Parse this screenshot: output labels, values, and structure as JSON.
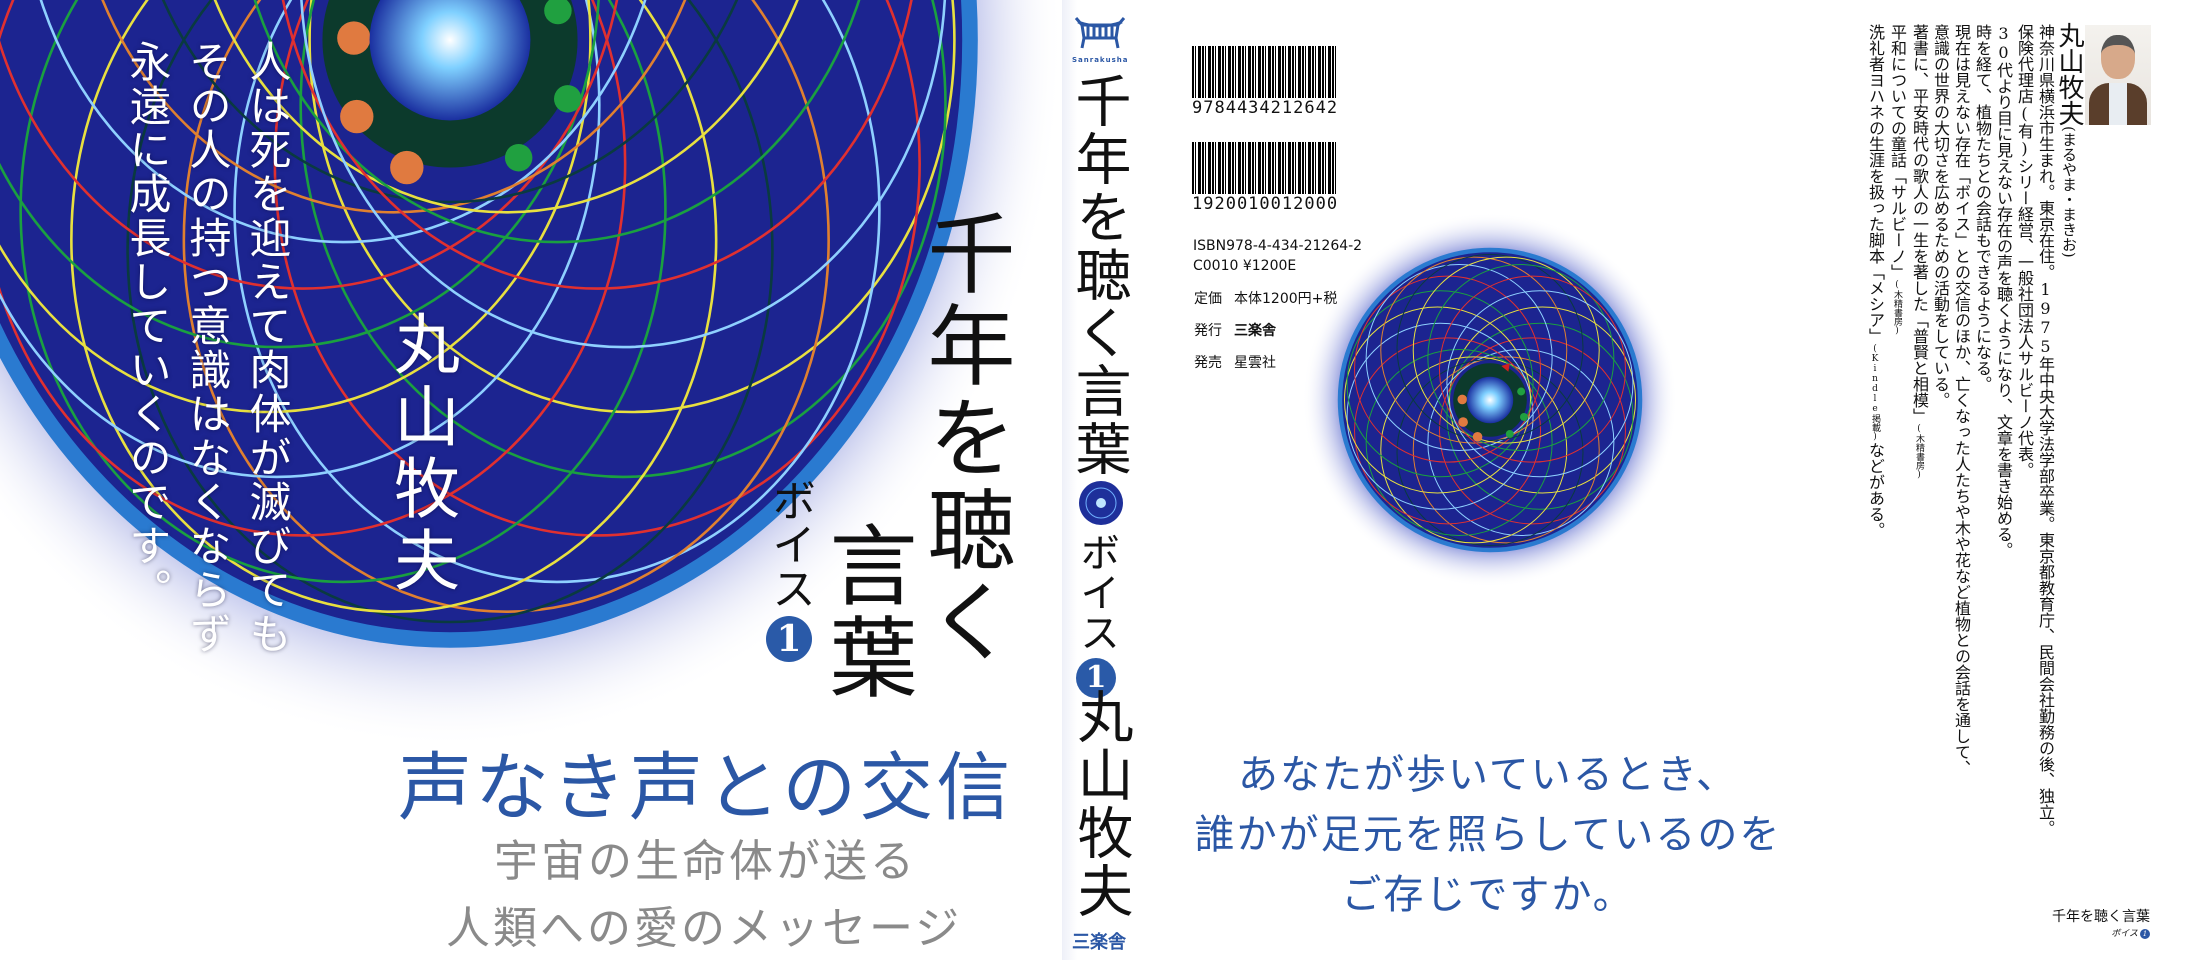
{
  "front": {
    "quote": [
      "人は死を迎えて肉体が滅びても",
      "その人の持つ意識はなくならず",
      "永遠に成長していくのです。"
    ],
    "author": "丸山牧夫",
    "title_line1": "千年を聴く",
    "title_line2": "言葉",
    "series": "ボイス",
    "volume": "1",
    "tagline": "声なき声との交信",
    "subtitle": [
      "宇宙の生命体が送る",
      "人類への愛のメッセージ"
    ]
  },
  "spine": {
    "logo_text": "Sanrakusha",
    "title": "千年を聴く言葉",
    "series": "ボイス",
    "volume": "1",
    "author": "丸山牧夫",
    "publisher": "三楽舎"
  },
  "back": {
    "barcode1": "9784434212642",
    "barcode2": "1920010012000",
    "isbn": "ISBN978-4-434-21264-2",
    "code": "C0010 ¥1200E",
    "price_label": "定価",
    "price": "本体1200円+税",
    "publisher_label": "発行",
    "publisher": "三楽舎",
    "distributor_label": "発売",
    "distributor": "星雲社",
    "tagline": [
      "あなたが歩いているとき、",
      "誰かが足元を照らしているのを",
      "ご存じですか。"
    ],
    "bio": {
      "name": "丸山牧夫",
      "reading": "(まるやま・まきお)",
      "lines": [
        {
          "text": "神奈川県横浜市生まれ。東京在住。1975年中央大学法学部卒業。東京都教育庁、民間会社勤務の後、独立。"
        },
        {
          "text": "保険代理店(有)シリー経営、一般社団法人サルビーノ代表。"
        },
        {
          "text": "30代より目に見えない存在の声を聴くようになり、文章を書き始める。"
        },
        {
          "text": "時を経て、植物たちとの会話もできるようになる。"
        },
        {
          "text": "現在は見えない存在「ボイス」との交信のほか、亡くなった人たちや木や花など植物との会話を通して、"
        },
        {
          "text": "意識の世界の大切さを広めるための活動をしている。"
        },
        {
          "text": "著書に、平安時代の歌人の一生を著した「普賢と相模」",
          "note": "(木精書房)"
        },
        {
          "text": "平和についての童話「サルビーノ」",
          "note": "(木精書房)"
        },
        {
          "text": "洗礼者ヨハネの生涯を扱った脚本「メシア」",
          "note": "(Kindle掲載)",
          "tail": "などがある。"
        }
      ]
    },
    "footer_title": "千年を聴く言葉",
    "footer_series": "ボイス",
    "footer_volume": "1"
  },
  "colors": {
    "accent_blue": "#2b57a5",
    "deep_blue": "#1a2a8a",
    "subtitle_gray": "#8a8a8a"
  }
}
